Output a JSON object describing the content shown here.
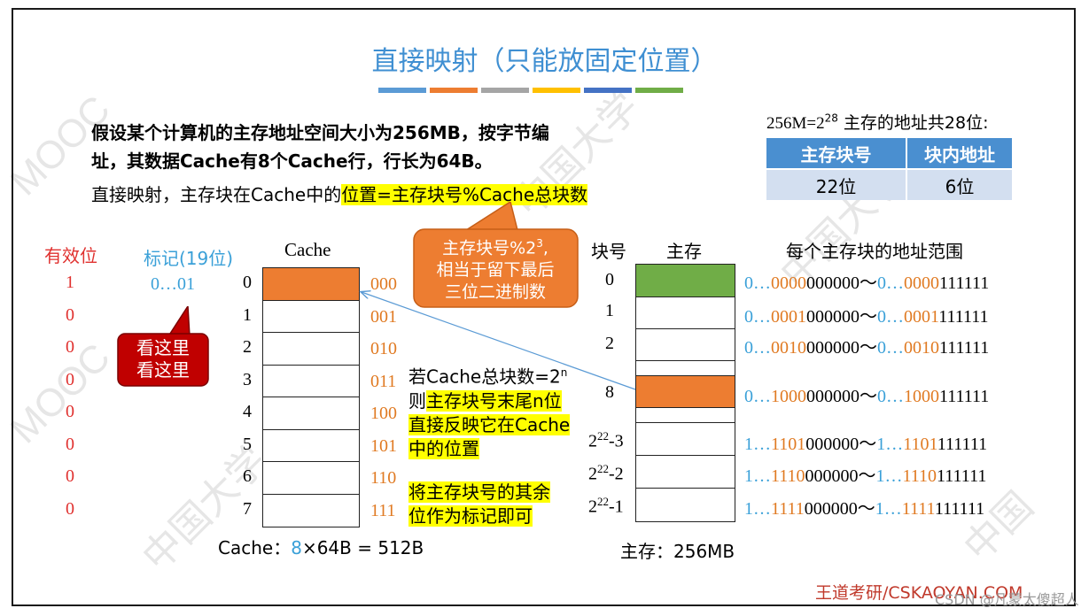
{
  "title": "直接映射（只能放固定位置）",
  "title_bar_colors": [
    "#5b9bd5",
    "#ed7d31",
    "#a5a5a5",
    "#ffc000",
    "#4472c4",
    "#70ad47"
  ],
  "intro_line1_pre": "假设某个计算机的主存地址空间大小为256MB，按",
  "intro_line1_bold": "字节",
  "intro_line1_post": "编",
  "intro_line2": "址，其数据Cache有8个Cache行，行长为64B。",
  "rule_pre": "直接映射，主存块在Cache中的",
  "rule_hl": "位置=主存块号%Cache总块数",
  "addr_info": {
    "prefix": "256M=2",
    "exp": "28",
    "suffix": " 主存的地址共28位:",
    "headers": [
      "主存块号",
      "块内地址"
    ],
    "values": [
      "22位",
      "6位"
    ]
  },
  "callout_mod": {
    "line1": "主存块号%2",
    "line1_sup": "3",
    "line1_end": ",",
    "line2": "相当于留下最后",
    "line3": "三位二进制数"
  },
  "callout_look": {
    "line1": "看这里",
    "line2": "看这里"
  },
  "cache": {
    "valid_header": "有效位",
    "tag_header": "标记(19位)",
    "title": "Cache",
    "valid_bits": [
      "1",
      "0",
      "0",
      "0",
      "0",
      "0",
      "0",
      "0"
    ],
    "first_tag": "0…01",
    "line_numbers": [
      "0",
      "1",
      "2",
      "3",
      "4",
      "5",
      "6",
      "7"
    ],
    "binary": [
      "000",
      "001",
      "010",
      "011",
      "100",
      "101",
      "110",
      "111"
    ],
    "size_pre": "Cache：",
    "size_num": "8",
    "size_post": "×64B = 512B"
  },
  "note": {
    "l1": "若Cache总块数=2",
    "l1_sup": "n",
    "l2_pre": "则",
    "l2_hl": "主存块号末尾n位",
    "l3": "直接反映它在Cache",
    "l4": "中的位置",
    "l5": "将主存块号的其余",
    "l6": "位作为标记即可"
  },
  "memory": {
    "block_header": "块号",
    "mem_header": "主存",
    "range_header": "每个主存块的地址范围",
    "block_numbers": [
      "0",
      "1",
      "2",
      "8"
    ],
    "block_exp": [
      {
        "base": "2",
        "exp": "22",
        "rest": "-3"
      },
      {
        "base": "2",
        "exp": "22",
        "rest": "-2"
      },
      {
        "base": "2",
        "exp": "22",
        "rest": "-1"
      }
    ],
    "ranges": [
      {
        "p1": "0…",
        "o1": "0000",
        "b1": "000000",
        "sep": "～",
        "p2": "0…",
        "o2": "0000",
        "b2": "111111"
      },
      {
        "p1": "0…",
        "o1": "0001",
        "b1": "000000",
        "sep": "～",
        "p2": "0…",
        "o2": "0001",
        "b2": "111111"
      },
      {
        "p1": "0…",
        "o1": "0010",
        "b1": "000000",
        "sep": "～",
        "p2": "0…",
        "o2": "0010",
        "b2": "111111"
      },
      {
        "p1": "0…",
        "o1": "1000",
        "b1": "000000",
        "sep": "～",
        "p2": "0…",
        "o2": "1000",
        "b2": "111111"
      },
      {
        "p1": "1…",
        "o1": "1101",
        "b1": "000000",
        "sep": "～",
        "p2": "1…",
        "o2": "1101",
        "b2": "111111"
      },
      {
        "p1": "1…",
        "o1": "1110",
        "b1": "000000",
        "sep": "～",
        "p2": "1…",
        "o2": "1110",
        "b2": "111111"
      },
      {
        "p1": "1…",
        "o1": "1111",
        "b1": "000000",
        "sep": "～",
        "p2": "1…",
        "o2": "1111",
        "b2": "111111"
      }
    ],
    "size_label": "主存：256MB"
  },
  "footer": "王道考研/CSKAOYAN.COM",
  "csdn": "CSDN @凡蒙太傻超人",
  "colors": {
    "green_block": "#70ad47",
    "orange_block": "#ed7d31",
    "callout_orange": "#ed7d31",
    "callout_red": "#c00000",
    "title_blue": "#3f8fd2"
  }
}
